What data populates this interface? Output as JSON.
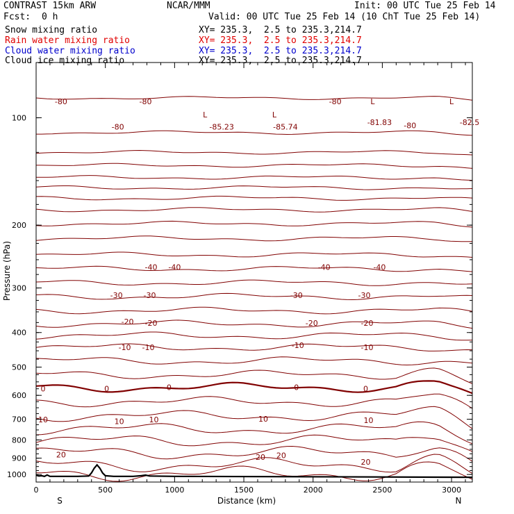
{
  "header": {
    "model": "CONTRAST 15km ARW",
    "org": "NCAR/MMM",
    "init": "Init: 00 UTC Tue 25 Feb 14",
    "fcst_label": "Fcst:",
    "fcst_value": "0 h",
    "valid": "Valid: 00 UTC Tue 25 Feb 14 (10 ChT Tue 25 Feb 14)"
  },
  "legend": [
    {
      "label": "Snow mixing ratio",
      "xy": "XY= 235.3,  2.5 to 235.3,214.7",
      "color": "#000000"
    },
    {
      "label": "Rain water mixing ratio",
      "xy": "XY= 235.3,  2.5 to 235.3,214.7",
      "color": "#e00000"
    },
    {
      "label": "Cloud water mixing ratio",
      "xy": "XY= 235.3,  2.5 to 235.3,214.7",
      "color": "#0000cc"
    },
    {
      "label": "Cloud ice mixing ratio",
      "xy": "XY= 235.3,  2.5 to 235.3,214.7",
      "color": "#000000"
    }
  ],
  "chart_data": {
    "type": "line",
    "subtype": "vertical cross-section, temperature contours",
    "xlabel": "Distance (km)",
    "ylabel": "Pressure (hPa)",
    "x_ticks": [
      0,
      500,
      1000,
      1500,
      2000,
      2500,
      3000
    ],
    "y_ticks": [
      100,
      200,
      300,
      400,
      500,
      600,
      700,
      800,
      900,
      1000
    ],
    "xlim": [
      0,
      3150
    ],
    "ylim": [
      1050,
      70
    ],
    "y_scale": "log",
    "x_end_labels": {
      "left": "S",
      "right": "N"
    },
    "contour_color": "#800000",
    "terrain_color": "#000000",
    "contour_levels": [
      {
        "p": 88,
        "label": "",
        "bold": false
      },
      {
        "p": 110,
        "label": "",
        "bold": false
      },
      {
        "p": 125,
        "label": "",
        "bold": false
      },
      {
        "p": 136,
        "label": "",
        "bold": false
      },
      {
        "p": 147,
        "label": "",
        "bold": false
      },
      {
        "p": 157,
        "label": "",
        "bold": false
      },
      {
        "p": 168,
        "label": "",
        "bold": false
      },
      {
        "p": 181,
        "label": "",
        "bold": false
      },
      {
        "p": 198,
        "label": "",
        "bold": false
      },
      {
        "p": 218,
        "label": "",
        "bold": false
      },
      {
        "p": 242,
        "label": "",
        "bold": false
      },
      {
        "p": 265,
        "label": "-40",
        "bold": false
      },
      {
        "p": 290,
        "label": "",
        "bold": false
      },
      {
        "p": 317,
        "label": "-30",
        "bold": false
      },
      {
        "p": 347,
        "label": "",
        "bold": false
      },
      {
        "p": 378,
        "label": "-20",
        "bold": false
      },
      {
        "p": 408,
        "label": "",
        "bold": false
      },
      {
        "p": 440,
        "label": "-10",
        "bold": false
      },
      {
        "p": 480,
        "label": "",
        "bold": false
      },
      {
        "p": 525,
        "label": "",
        "bold": false
      },
      {
        "p": 570,
        "label": "0",
        "bold": true
      },
      {
        "p": 625,
        "label": "",
        "bold": false
      },
      {
        "p": 685,
        "label": "10",
        "bold": false
      },
      {
        "p": 745,
        "label": "",
        "bold": false
      },
      {
        "p": 805,
        "label": "",
        "bold": false
      },
      {
        "p": 870,
        "label": "20",
        "bold": false
      },
      {
        "p": 940,
        "label": "",
        "bold": false
      },
      {
        "p": 995,
        "label": "",
        "bold": false
      }
    ],
    "annotations": [
      {
        "text": "-80",
        "x": 180,
        "p": 90
      },
      {
        "text": "-80",
        "x": 790,
        "p": 90
      },
      {
        "text": "-80",
        "x": 590,
        "p": 106
      },
      {
        "text": "-80",
        "x": 2700,
        "p": 105
      },
      {
        "text": "-80",
        "x": 2160,
        "p": 90
      },
      {
        "text": "L",
        "x": 1220,
        "p": 98
      },
      {
        "text": "-85.23",
        "x": 1340,
        "p": 106
      },
      {
        "text": "L",
        "x": 1720,
        "p": 98
      },
      {
        "text": "-85.74",
        "x": 1800,
        "p": 106
      },
      {
        "text": "L",
        "x": 2430,
        "p": 90
      },
      {
        "text": "-81.83",
        "x": 2480,
        "p": 103
      },
      {
        "text": "L",
        "x": 3000,
        "p": 90
      },
      {
        "text": "-82.5",
        "x": 3130,
        "p": 103
      },
      {
        "text": "-40",
        "x": 1000,
        "p": 262
      },
      {
        "text": "-40",
        "x": 2480,
        "p": 262
      },
      {
        "text": "-40",
        "x": 830,
        "p": 262
      },
      {
        "text": "-40",
        "x": 2080,
        "p": 262
      },
      {
        "text": "-30",
        "x": 580,
        "p": 314
      },
      {
        "text": "-30",
        "x": 820,
        "p": 314
      },
      {
        "text": "-30",
        "x": 1880,
        "p": 314
      },
      {
        "text": "-30",
        "x": 2370,
        "p": 314
      },
      {
        "text": "-20",
        "x": 660,
        "p": 373
      },
      {
        "text": "-20",
        "x": 830,
        "p": 376
      },
      {
        "text": "-20",
        "x": 1990,
        "p": 376
      },
      {
        "text": "-20",
        "x": 2390,
        "p": 376
      },
      {
        "text": "-10",
        "x": 640,
        "p": 440
      },
      {
        "text": "-10",
        "x": 810,
        "p": 440
      },
      {
        "text": "-10",
        "x": 1890,
        "p": 434
      },
      {
        "text": "-10",
        "x": 2390,
        "p": 440
      },
      {
        "text": "0",
        "x": 50,
        "p": 575
      },
      {
        "text": "0",
        "x": 510,
        "p": 575
      },
      {
        "text": "0",
        "x": 960,
        "p": 570
      },
      {
        "text": "0",
        "x": 1880,
        "p": 570
      },
      {
        "text": "0",
        "x": 2380,
        "p": 575
      },
      {
        "text": "10",
        "x": 50,
        "p": 702
      },
      {
        "text": "10",
        "x": 600,
        "p": 710
      },
      {
        "text": "10",
        "x": 850,
        "p": 702
      },
      {
        "text": "10",
        "x": 1640,
        "p": 698
      },
      {
        "text": "10",
        "x": 2400,
        "p": 705
      },
      {
        "text": "20",
        "x": 180,
        "p": 880
      },
      {
        "text": "20",
        "x": 1620,
        "p": 893
      },
      {
        "text": "20",
        "x": 1770,
        "p": 883
      },
      {
        "text": "20",
        "x": 2380,
        "p": 923
      }
    ],
    "terrain": {
      "x": [
        0,
        20,
        40,
        60,
        80,
        100,
        300,
        380,
        400,
        420,
        440,
        460,
        480,
        500,
        560,
        700,
        760,
        790,
        820,
        1000,
        3150
      ],
      "p": [
        1005,
        1010,
        1008,
        1012,
        1003,
        1012,
        1012,
        1010,
        990,
        960,
        940,
        960,
        990,
        1008,
        1012,
        1012,
        1008,
        1004,
        1010,
        1012,
        1018
      ]
    }
  }
}
